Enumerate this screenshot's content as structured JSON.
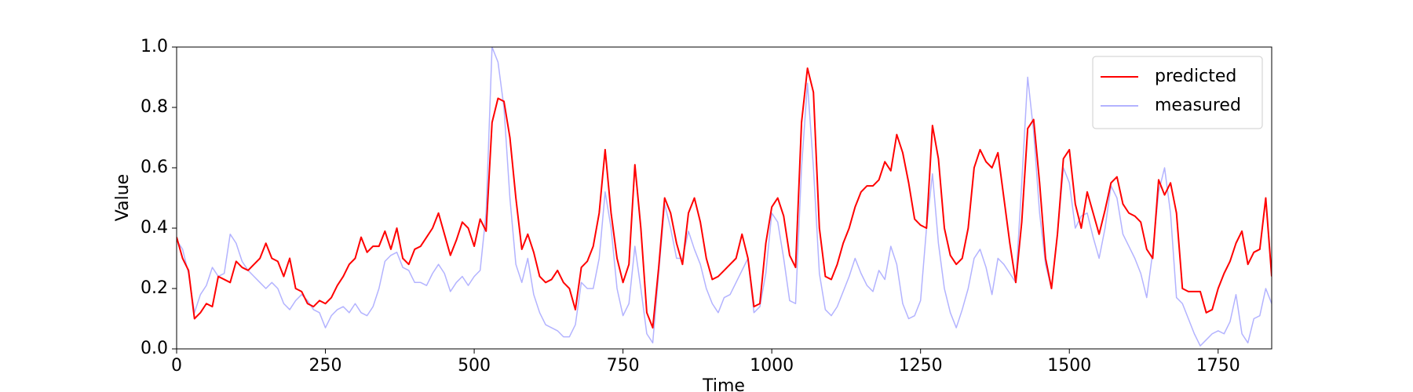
{
  "chart_data": {
    "type": "line",
    "xlabel": "Time",
    "ylabel": "Value",
    "x": [
      0,
      10,
      20,
      30,
      40,
      50,
      60,
      70,
      80,
      90,
      100,
      110,
      120,
      130,
      140,
      150,
      160,
      170,
      180,
      190,
      200,
      210,
      220,
      230,
      240,
      250,
      260,
      270,
      280,
      290,
      300,
      310,
      320,
      330,
      340,
      350,
      360,
      370,
      380,
      390,
      400,
      410,
      420,
      430,
      440,
      450,
      460,
      470,
      480,
      490,
      500,
      510,
      520,
      530,
      540,
      550,
      560,
      570,
      580,
      590,
      600,
      610,
      620,
      630,
      640,
      650,
      660,
      670,
      680,
      690,
      700,
      710,
      720,
      730,
      740,
      750,
      760,
      770,
      780,
      790,
      800,
      810,
      820,
      830,
      840,
      850,
      860,
      870,
      880,
      890,
      900,
      910,
      920,
      930,
      940,
      950,
      960,
      970,
      980,
      990,
      1000,
      1010,
      1020,
      1030,
      1040,
      1050,
      1060,
      1070,
      1080,
      1090,
      1100,
      1110,
      1120,
      1130,
      1140,
      1150,
      1160,
      1170,
      1180,
      1190,
      1200,
      1210,
      1220,
      1230,
      1240,
      1250,
      1260,
      1270,
      1280,
      1290,
      1300,
      1310,
      1320,
      1330,
      1340,
      1350,
      1360,
      1370,
      1380,
      1390,
      1400,
      1410,
      1420,
      1430,
      1440,
      1450,
      1460,
      1470,
      1480,
      1490,
      1500,
      1510,
      1520,
      1530,
      1540,
      1550,
      1560,
      1570,
      1580,
      1590,
      1600,
      1610,
      1620,
      1630,
      1640,
      1650,
      1660,
      1670,
      1680,
      1690,
      1700,
      1710,
      1720,
      1730,
      1740,
      1750,
      1760,
      1770,
      1780,
      1790,
      1800,
      1810,
      1820,
      1830,
      1840
    ],
    "series": [
      {
        "name": "predicted",
        "color": "#ff0000",
        "values": [
          0.37,
          0.3,
          0.26,
          0.1,
          0.12,
          0.15,
          0.14,
          0.24,
          0.23,
          0.22,
          0.29,
          0.27,
          0.26,
          0.28,
          0.3,
          0.35,
          0.3,
          0.29,
          0.24,
          0.3,
          0.2,
          0.19,
          0.15,
          0.14,
          0.16,
          0.15,
          0.17,
          0.21,
          0.24,
          0.28,
          0.3,
          0.37,
          0.32,
          0.34,
          0.34,
          0.39,
          0.33,
          0.4,
          0.3,
          0.28,
          0.33,
          0.34,
          0.37,
          0.4,
          0.45,
          0.38,
          0.31,
          0.36,
          0.42,
          0.4,
          0.34,
          0.43,
          0.39,
          0.75,
          0.83,
          0.82,
          0.7,
          0.5,
          0.33,
          0.38,
          0.32,
          0.24,
          0.22,
          0.23,
          0.26,
          0.22,
          0.2,
          0.13,
          0.27,
          0.29,
          0.34,
          0.45,
          0.66,
          0.45,
          0.3,
          0.22,
          0.28,
          0.61,
          0.4,
          0.12,
          0.07,
          0.27,
          0.5,
          0.45,
          0.35,
          0.28,
          0.45,
          0.5,
          0.42,
          0.3,
          0.23,
          0.24,
          0.26,
          0.28,
          0.3,
          0.38,
          0.3,
          0.14,
          0.15,
          0.35,
          0.47,
          0.5,
          0.44,
          0.31,
          0.27,
          0.75,
          0.93,
          0.85,
          0.4,
          0.24,
          0.23,
          0.28,
          0.35,
          0.4,
          0.47,
          0.52,
          0.54,
          0.54,
          0.56,
          0.62,
          0.59,
          0.71,
          0.65,
          0.55,
          0.43,
          0.41,
          0.4,
          0.74,
          0.63,
          0.4,
          0.31,
          0.28,
          0.3,
          0.4,
          0.6,
          0.66,
          0.62,
          0.6,
          0.65,
          0.5,
          0.35,
          0.22,
          0.42,
          0.73,
          0.76,
          0.55,
          0.3,
          0.2,
          0.38,
          0.63,
          0.66,
          0.48,
          0.4,
          0.52,
          0.45,
          0.38,
          0.46,
          0.55,
          0.57,
          0.48,
          0.45,
          0.44,
          0.42,
          0.33,
          0.3,
          0.56,
          0.51,
          0.55,
          0.45,
          0.2,
          0.19,
          0.19,
          0.19,
          0.12,
          0.13,
          0.2,
          0.25,
          0.29,
          0.35,
          0.39,
          0.28,
          0.32,
          0.33,
          0.5,
          0.24
        ]
      },
      {
        "name": "measured",
        "color": "#b3b3ff",
        "values": [
          0.36,
          0.33,
          0.25,
          0.12,
          0.18,
          0.21,
          0.27,
          0.24,
          0.25,
          0.38,
          0.35,
          0.29,
          0.26,
          0.24,
          0.22,
          0.2,
          0.22,
          0.2,
          0.15,
          0.13,
          0.16,
          0.18,
          0.16,
          0.13,
          0.12,
          0.07,
          0.11,
          0.13,
          0.14,
          0.12,
          0.15,
          0.12,
          0.11,
          0.14,
          0.2,
          0.29,
          0.31,
          0.32,
          0.27,
          0.26,
          0.22,
          0.22,
          0.21,
          0.25,
          0.28,
          0.25,
          0.19,
          0.22,
          0.24,
          0.21,
          0.24,
          0.26,
          0.45,
          1.0,
          0.95,
          0.8,
          0.5,
          0.28,
          0.22,
          0.3,
          0.18,
          0.12,
          0.08,
          0.07,
          0.06,
          0.04,
          0.04,
          0.08,
          0.22,
          0.2,
          0.2,
          0.3,
          0.52,
          0.4,
          0.2,
          0.11,
          0.15,
          0.34,
          0.2,
          0.05,
          0.02,
          0.25,
          0.48,
          0.4,
          0.3,
          0.3,
          0.39,
          0.33,
          0.28,
          0.2,
          0.15,
          0.12,
          0.17,
          0.18,
          0.22,
          0.26,
          0.3,
          0.12,
          0.14,
          0.25,
          0.45,
          0.42,
          0.3,
          0.16,
          0.15,
          0.6,
          0.88,
          0.6,
          0.25,
          0.13,
          0.11,
          0.14,
          0.19,
          0.24,
          0.3,
          0.25,
          0.21,
          0.19,
          0.26,
          0.23,
          0.34,
          0.28,
          0.15,
          0.1,
          0.11,
          0.16,
          0.4,
          0.58,
          0.35,
          0.2,
          0.12,
          0.07,
          0.13,
          0.2,
          0.3,
          0.33,
          0.27,
          0.18,
          0.3,
          0.28,
          0.25,
          0.22,
          0.55,
          0.9,
          0.72,
          0.45,
          0.28,
          0.2,
          0.38,
          0.6,
          0.55,
          0.4,
          0.44,
          0.45,
          0.37,
          0.3,
          0.4,
          0.54,
          0.5,
          0.38,
          0.34,
          0.3,
          0.25,
          0.17,
          0.32,
          0.52,
          0.6,
          0.45,
          0.17,
          0.15,
          0.1,
          0.05,
          0.01,
          0.03,
          0.05,
          0.06,
          0.05,
          0.09,
          0.18,
          0.05,
          0.02,
          0.1,
          0.11,
          0.2,
          0.15
        ]
      }
    ],
    "xlim": [
      0,
      1840
    ],
    "xticks": [
      0,
      250,
      500,
      750,
      1000,
      1250,
      1500,
      1750
    ],
    "ylim": [
      0,
      1.0
    ],
    "yticks": [
      {
        "value": 0,
        "label": "0.0"
      },
      0.2,
      0.4,
      0.6,
      0.8,
      {
        "value": 1.0,
        "label": "1.0"
      }
    ],
    "legend": "upper right",
    "grid": false
  }
}
